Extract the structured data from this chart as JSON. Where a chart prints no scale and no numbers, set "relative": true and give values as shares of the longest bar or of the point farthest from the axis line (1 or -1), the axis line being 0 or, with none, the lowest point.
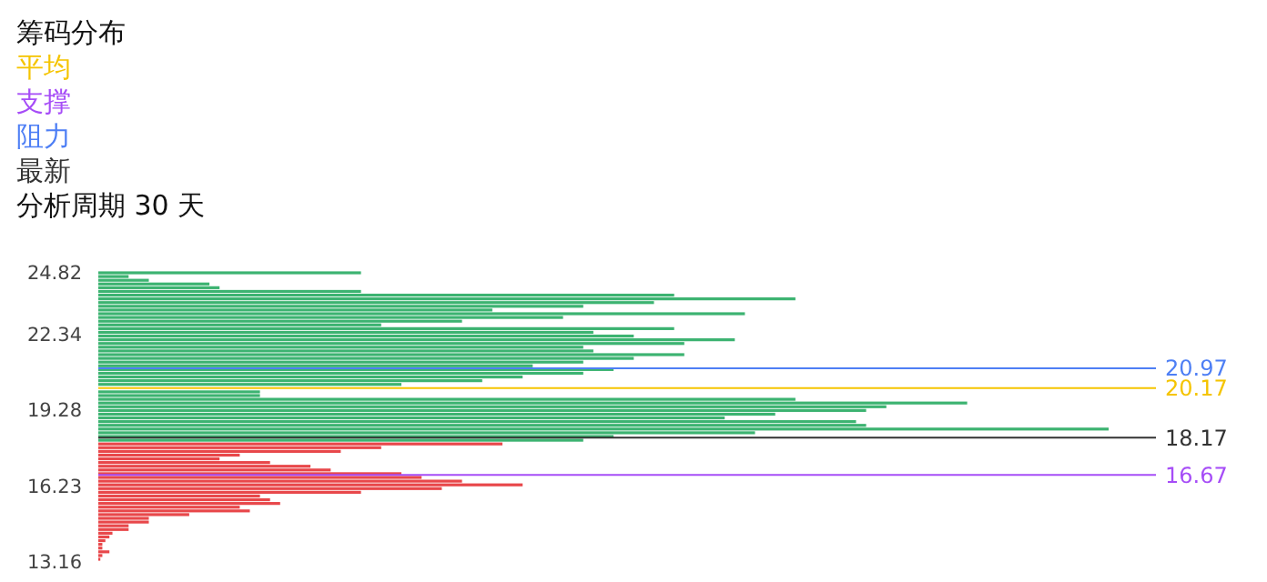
{
  "chart_data": {
    "type": "bar",
    "orientation": "horizontal",
    "relative": true,
    "title": "筹码分布",
    "subtitle": "分析周期 30 天",
    "ylim": [
      13.16,
      24.82
    ],
    "yticks": [
      13.16,
      16.23,
      19.28,
      22.34,
      24.82
    ],
    "grid": false,
    "annotations": [
      "平均",
      "支撑",
      "阻力",
      "最新"
    ],
    "series": [
      {
        "color": "#3cb371",
        "x": [
          24.82,
          24.67,
          24.52,
          24.37,
          24.22,
          24.07,
          23.92,
          23.77,
          23.62,
          23.47,
          23.32,
          23.17,
          23.02,
          22.87,
          22.72,
          22.57,
          22.42,
          22.27,
          22.12,
          21.97,
          21.82,
          21.67,
          21.52,
          21.37,
          21.22,
          21.07,
          20.92,
          20.77,
          20.62,
          20.47,
          20.32,
          20.02,
          19.87,
          19.72,
          19.57,
          19.42,
          19.27,
          19.12,
          18.97,
          18.82,
          18.67,
          18.52,
          18.37,
          18.22,
          18.07
        ],
        "values": [
          0.26,
          0.03,
          0.05,
          0.11,
          0.12,
          0.26,
          0.57,
          0.69,
          0.55,
          0.48,
          0.39,
          0.64,
          0.46,
          0.36,
          0.28,
          0.57,
          0.49,
          0.53,
          0.63,
          0.58,
          0.48,
          0.49,
          0.58,
          0.53,
          0.48,
          0.43,
          0.51,
          0.48,
          0.42,
          0.38,
          0.3,
          0.16,
          0.16,
          0.69,
          0.86,
          0.78,
          0.76,
          0.67,
          0.62,
          0.75,
          0.76,
          1,
          0.65,
          0.51,
          0.48
        ]
      },
      {
        "color": "#e8474a",
        "x": [
          17.92,
          17.77,
          17.62,
          17.47,
          17.32,
          17.17,
          17.02,
          16.87,
          16.72,
          16.57,
          16.42,
          16.27,
          16.12,
          15.97,
          15.82,
          15.67,
          15.52,
          15.37,
          15.22,
          15.07,
          14.92,
          14.77,
          14.62,
          14.47,
          14.32,
          14.17,
          14.02,
          13.87,
          13.72,
          13.57,
          13.42,
          13.27
        ],
        "values": [
          0.4,
          0.28,
          0.24,
          0.14,
          0.12,
          0.17,
          0.21,
          0.23,
          0.3,
          0.32,
          0.36,
          0.42,
          0.34,
          0.26,
          0.16,
          0.17,
          0.18,
          0.14,
          0.15,
          0.09,
          0.05,
          0.05,
          0.03,
          0.03,
          0.014,
          0.011,
          0.007,
          0.004,
          0.004,
          0.011,
          0.004,
          0.002
        ]
      }
    ],
    "ref_lines": [
      {
        "axis": "y",
        "value": 20.17,
        "label": "20.17",
        "color": "#f5c400"
      },
      {
        "axis": "y",
        "value": 16.67,
        "label": "16.67",
        "color": "#a64df7"
      },
      {
        "axis": "y",
        "value": 20.97,
        "label": "20.97",
        "color": "#4e7ff5"
      },
      {
        "axis": "y",
        "value": 18.17,
        "label": "18.17",
        "color": "#333333"
      }
    ]
  }
}
